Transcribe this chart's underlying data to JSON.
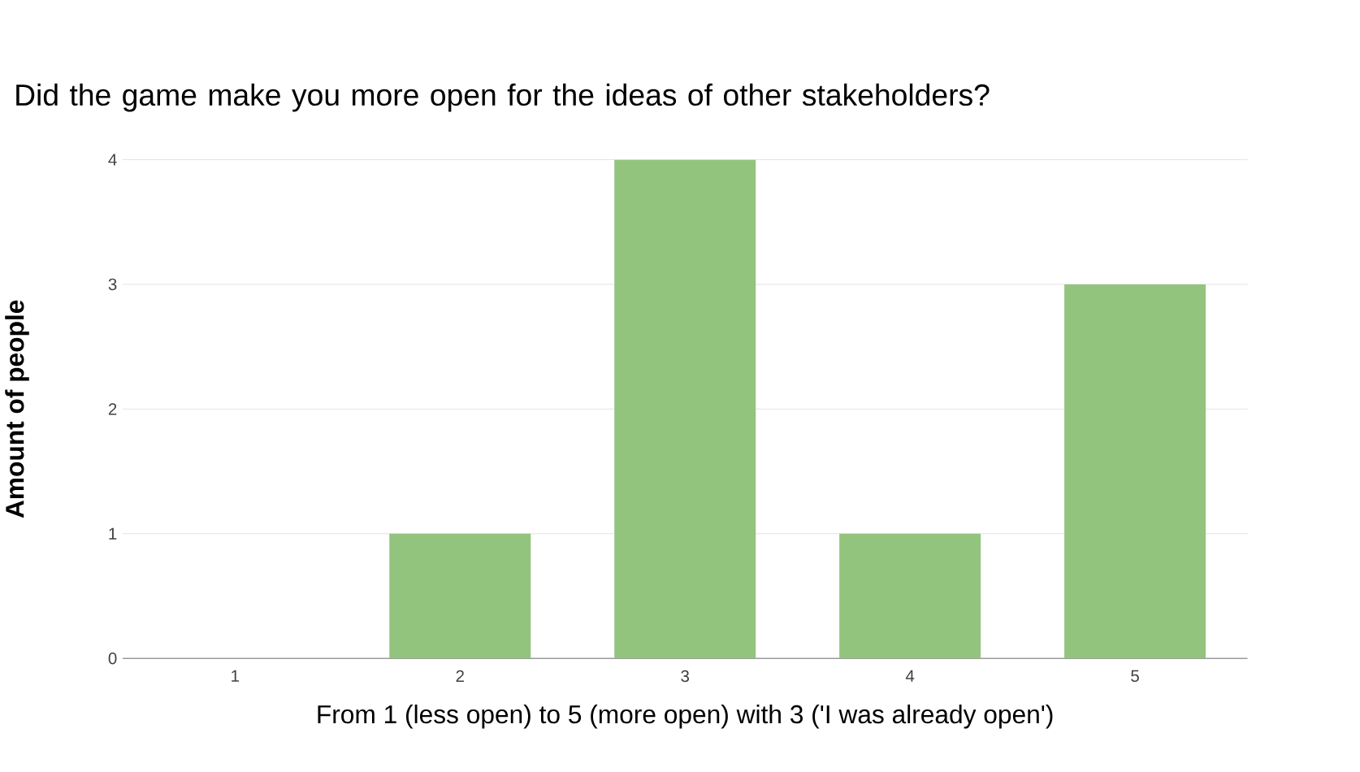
{
  "chart_data": {
    "type": "bar",
    "title": "Did the game make you more open for the ideas of other stakeholders?",
    "xlabel": "From 1 (less open) to 5 (more open) with 3 ('I was already open')",
    "ylabel": "Amount of people",
    "categories": [
      "1",
      "2",
      "3",
      "4",
      "5"
    ],
    "values": [
      0,
      1,
      4,
      1,
      3
    ],
    "color": "#93c47d",
    "ylim": [
      0,
      4
    ],
    "yticks": [
      0,
      1,
      2,
      3,
      4
    ],
    "grid": "y"
  }
}
